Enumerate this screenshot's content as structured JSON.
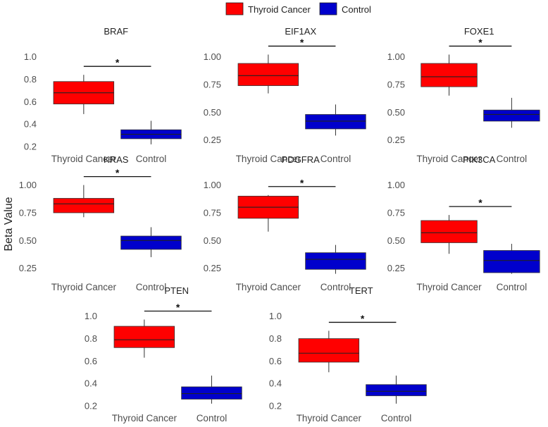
{
  "chart_data": {
    "type": "box",
    "ylabel": "Beta Value",
    "legend": {
      "position": "top-center",
      "entries": [
        {
          "label": "Thyroid Cancer",
          "color": "#ff0000"
        },
        {
          "label": "Control",
          "color": "#0000cc"
        }
      ]
    },
    "categories": [
      "Thyroid Cancer",
      "Control"
    ],
    "panels": [
      {
        "title": "BRAF",
        "ylim": [
          0.15,
          1.08
        ],
        "yticks": [
          0.2,
          0.4,
          0.6,
          0.8,
          1.0
        ],
        "ytick_labels": [
          "0.2",
          "0.4",
          "0.6",
          "0.8",
          "1.0"
        ],
        "significance": "*",
        "boxes": [
          {
            "group": "Thyroid Cancer",
            "min": 0.49,
            "q1": 0.58,
            "median": 0.68,
            "q3": 0.78,
            "max": 0.84
          },
          {
            "group": "Control",
            "min": 0.22,
            "q1": 0.27,
            "median": 0.31,
            "q3": 0.35,
            "max": 0.43
          }
        ]
      },
      {
        "title": "EIF1AX",
        "ylim": [
          0.14,
          1.08
        ],
        "yticks": [
          0.25,
          0.5,
          0.75,
          1.0
        ],
        "ytick_labels": [
          "0.25",
          "0.50",
          "0.75",
          "1.00"
        ],
        "significance": "*",
        "boxes": [
          {
            "group": "Thyroid Cancer",
            "min": 0.67,
            "q1": 0.74,
            "median": 0.83,
            "q3": 0.94,
            "max": 1.02
          },
          {
            "group": "Control",
            "min": 0.29,
            "q1": 0.35,
            "median": 0.42,
            "q3": 0.48,
            "max": 0.57
          }
        ]
      },
      {
        "title": "FOXE1",
        "ylim": [
          0.14,
          1.08
        ],
        "yticks": [
          0.25,
          0.5,
          0.75,
          1.0
        ],
        "ytick_labels": [
          "0.25",
          "0.50",
          "0.75",
          "1.00"
        ],
        "significance": "*",
        "boxes": [
          {
            "group": "Thyroid Cancer",
            "min": 0.65,
            "q1": 0.73,
            "median": 0.82,
            "q3": 0.94,
            "max": 1.02
          },
          {
            "group": "Control",
            "min": 0.36,
            "q1": 0.42,
            "median": 0.48,
            "q3": 0.52,
            "max": 0.63
          }
        ]
      },
      {
        "title": "KRAS",
        "ylim": [
          0.14,
          1.08
        ],
        "yticks": [
          0.25,
          0.5,
          0.75,
          1.0
        ],
        "ytick_labels": [
          "0.25",
          "0.50",
          "0.75",
          "1.00"
        ],
        "significance": "*",
        "boxes": [
          {
            "group": "Thyroid Cancer",
            "min": 0.71,
            "q1": 0.75,
            "median": 0.83,
            "q3": 0.88,
            "max": 1.0
          },
          {
            "group": "Control",
            "min": 0.35,
            "q1": 0.42,
            "median": 0.5,
            "q3": 0.54,
            "max": 0.62
          }
        ]
      },
      {
        "title": "PDGFRA",
        "ylim": [
          0.14,
          1.08
        ],
        "yticks": [
          0.25,
          0.5,
          0.75,
          1.0
        ],
        "ytick_labels": [
          "0.25",
          "0.50",
          "0.75",
          "1.00"
        ],
        "significance": "*",
        "boxes": [
          {
            "group": "Thyroid Cancer",
            "min": 0.58,
            "q1": 0.7,
            "median": 0.8,
            "q3": 0.9,
            "max": 0.91
          },
          {
            "group": "Control",
            "min": 0.2,
            "q1": 0.24,
            "median": 0.33,
            "q3": 0.39,
            "max": 0.46
          }
        ]
      },
      {
        "title": "PIK3CA",
        "ylim": [
          0.14,
          1.08
        ],
        "yticks": [
          0.25,
          0.5,
          0.75,
          1.0
        ],
        "ytick_labels": [
          "0.25",
          "0.50",
          "0.75",
          "1.00"
        ],
        "significance": "*",
        "boxes": [
          {
            "group": "Thyroid Cancer",
            "min": 0.38,
            "q1": 0.48,
            "median": 0.57,
            "q3": 0.68,
            "max": 0.73
          },
          {
            "group": "Control",
            "min": 0.2,
            "q1": 0.21,
            "median": 0.32,
            "q3": 0.41,
            "max": 0.47
          }
        ]
      },
      {
        "title": "PTEN",
        "ylim": [
          0.15,
          1.08
        ],
        "yticks": [
          0.2,
          0.4,
          0.6,
          0.8,
          1.0
        ],
        "ytick_labels": [
          "0.2",
          "0.4",
          "0.6",
          "0.8",
          "1.0"
        ],
        "significance": "*",
        "boxes": [
          {
            "group": "Thyroid Cancer",
            "min": 0.63,
            "q1": 0.72,
            "median": 0.79,
            "q3": 0.91,
            "max": 0.97
          },
          {
            "group": "Control",
            "min": 0.22,
            "q1": 0.26,
            "median": 0.31,
            "q3": 0.37,
            "max": 0.47
          }
        ]
      },
      {
        "title": "TERT",
        "ylim": [
          0.15,
          1.08
        ],
        "yticks": [
          0.2,
          0.4,
          0.6,
          0.8,
          1.0
        ],
        "ytick_labels": [
          "0.2",
          "0.4",
          "0.6",
          "0.8",
          "1.0"
        ],
        "significance": "*",
        "boxes": [
          {
            "group": "Thyroid Cancer",
            "min": 0.5,
            "q1": 0.59,
            "median": 0.67,
            "q3": 0.8,
            "max": 0.87
          },
          {
            "group": "Control",
            "min": 0.22,
            "q1": 0.29,
            "median": 0.33,
            "q3": 0.39,
            "max": 0.47
          }
        ]
      }
    ]
  }
}
